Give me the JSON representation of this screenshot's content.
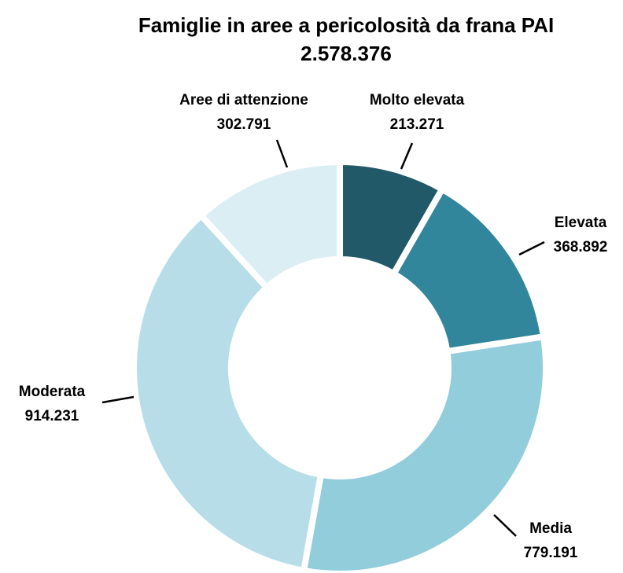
{
  "chart_data": {
    "type": "donut",
    "title": "Famiglie in aree a pericolosità da frana PAI",
    "subtitle": "2.578.376",
    "categories": [
      "Molto elevata",
      "Elevata",
      "Media",
      "Moderata",
      "Aree di attenzione"
    ],
    "values": [
      213271,
      368892,
      779191,
      914231,
      302791
    ],
    "value_labels": [
      "213.271",
      "368.892",
      "779.191",
      "914.231",
      "302.791"
    ],
    "colors": [
      "#215968",
      "#31869b",
      "#92cddc",
      "#b7dee8",
      "#daeef3"
    ]
  }
}
